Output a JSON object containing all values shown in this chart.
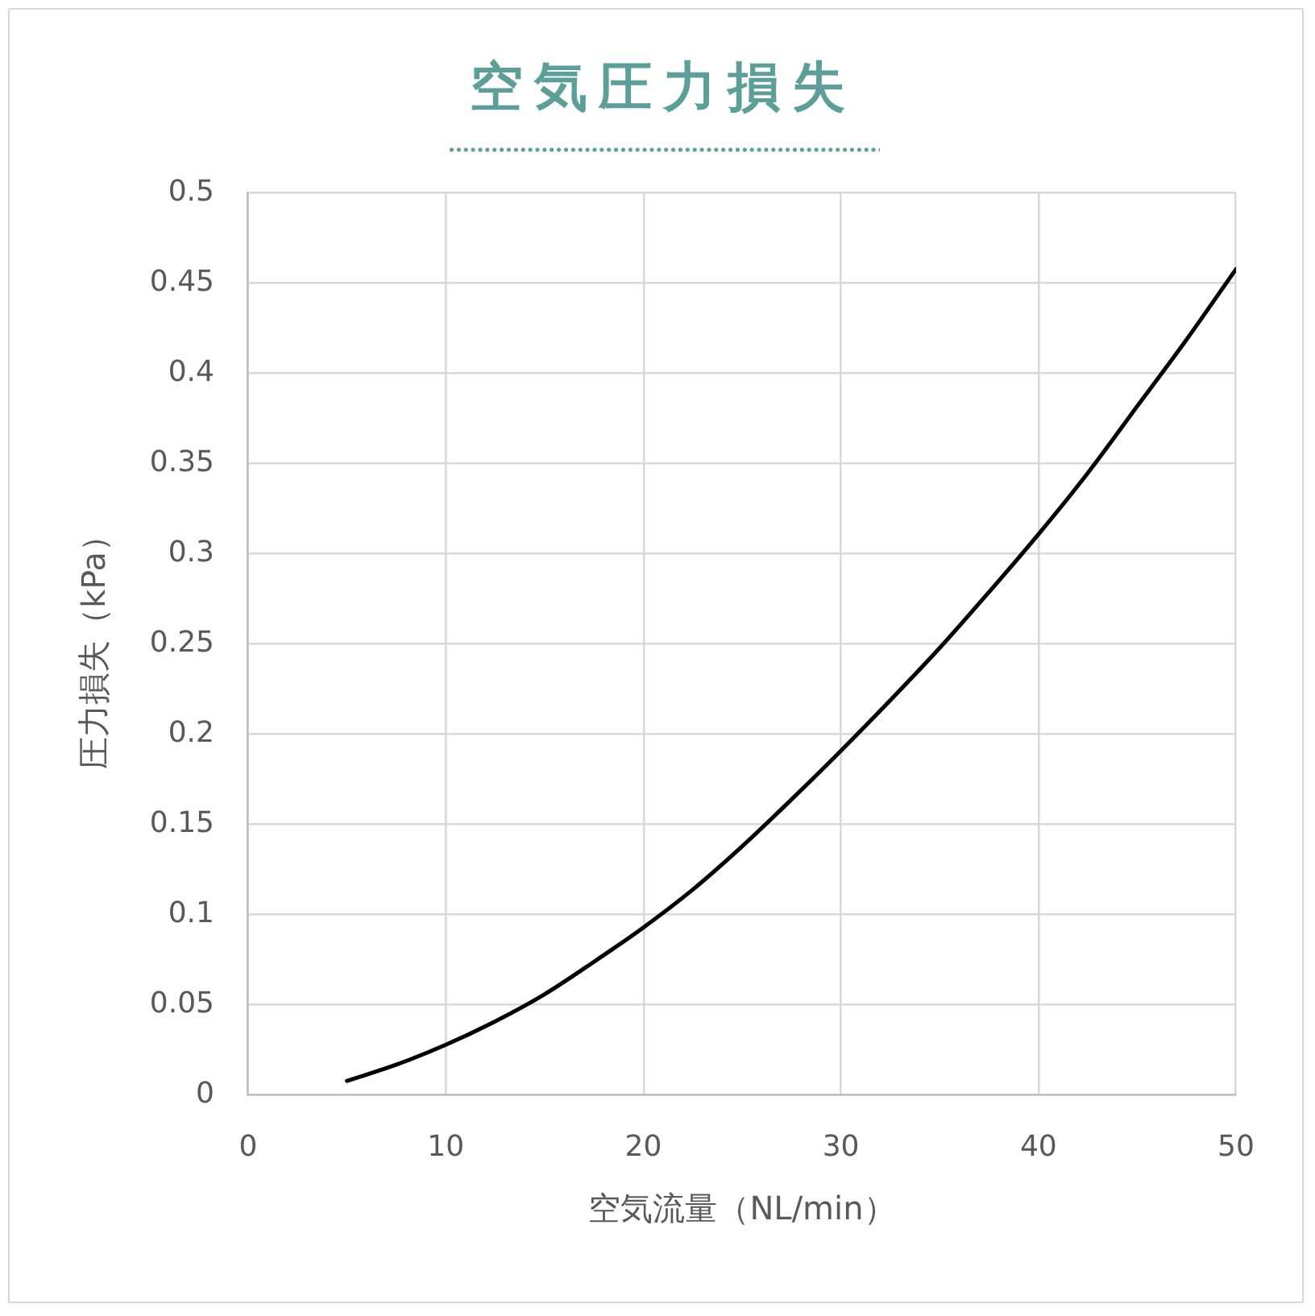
{
  "chart_data": {
    "type": "line",
    "title": "空気圧力損失",
    "xlabel": "空気流量（NL/min）",
    "ylabel": "圧力損失（kPa）",
    "x": [
      5,
      7.5,
      10,
      12.5,
      15,
      17.5,
      20,
      22.5,
      25,
      27.5,
      30,
      32.5,
      35,
      37.5,
      40,
      42.5,
      45,
      47.5,
      50
    ],
    "series": [
      {
        "color": "#000000",
        "values": [
          0.008,
          0.017,
          0.028,
          0.041,
          0.056,
          0.074,
          0.093,
          0.114,
          0.138,
          0.164,
          0.191,
          0.219,
          0.248,
          0.279,
          0.311,
          0.345,
          0.382,
          0.419,
          0.458
        ]
      }
    ],
    "xlim": [
      0,
      50
    ],
    "xticks": [
      0,
      10,
      20,
      30,
      40,
      50
    ],
    "ylim": [
      0,
      0.5
    ],
    "yticks": [
      0,
      0.05,
      0.1,
      0.15,
      0.2,
      0.25,
      0.3,
      0.35,
      0.4,
      0.45,
      0.5
    ],
    "grid": true,
    "marker": "none",
    "line_style": "solid"
  }
}
